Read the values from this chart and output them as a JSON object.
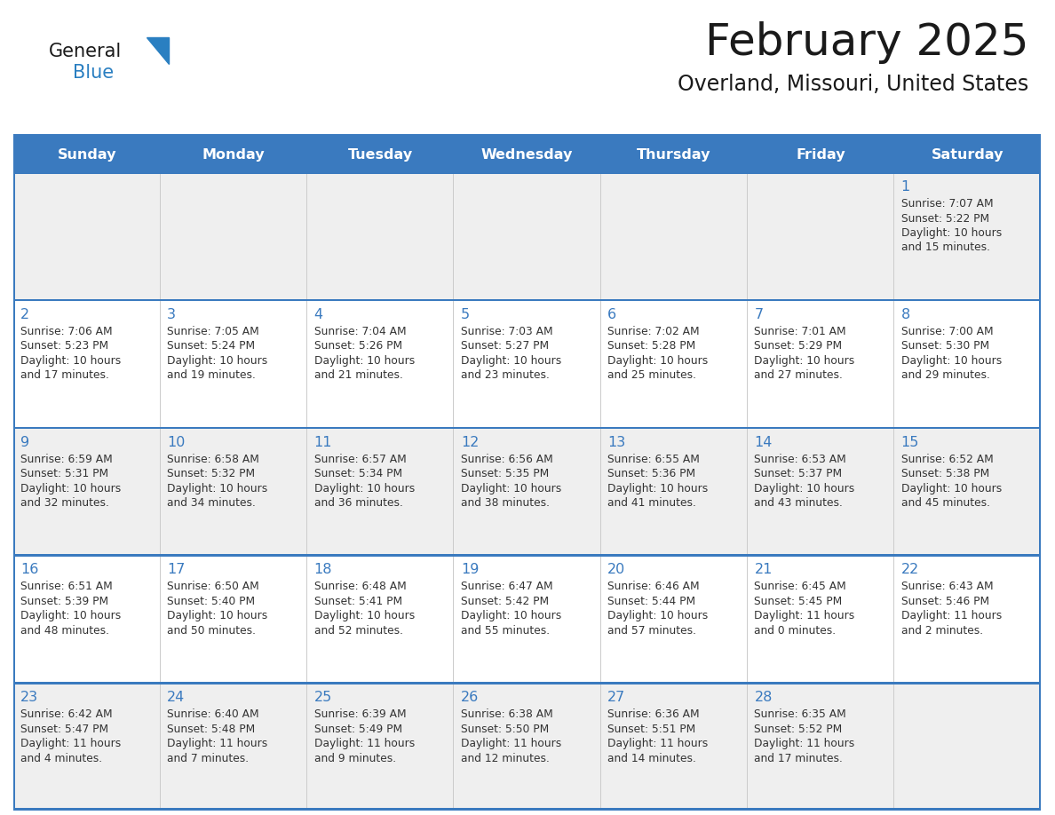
{
  "title": "February 2025",
  "subtitle": "Overland, Missouri, United States",
  "days_of_week": [
    "Sunday",
    "Monday",
    "Tuesday",
    "Wednesday",
    "Thursday",
    "Friday",
    "Saturday"
  ],
  "header_bg": "#3a7abf",
  "header_text": "#ffffff",
  "row_bg_odd": "#efefef",
  "row_bg_even": "#ffffff",
  "day_number_color": "#3a7abf",
  "cell_text_color": "#333333",
  "separator_color": "#3a7abf",
  "title_color": "#1a1a1a",
  "subtitle_color": "#1a1a1a",
  "logo_general_color": "#1a1a1a",
  "logo_blue_color": "#2a7fc1",
  "weeks": [
    [
      null,
      null,
      null,
      null,
      null,
      null,
      1
    ],
    [
      2,
      3,
      4,
      5,
      6,
      7,
      8
    ],
    [
      9,
      10,
      11,
      12,
      13,
      14,
      15
    ],
    [
      16,
      17,
      18,
      19,
      20,
      21,
      22
    ],
    [
      23,
      24,
      25,
      26,
      27,
      28,
      null
    ]
  ],
  "cell_data": {
    "1": {
      "sunrise": "7:07 AM",
      "sunset": "5:22 PM",
      "daylight": "10 hours and 15 minutes."
    },
    "2": {
      "sunrise": "7:06 AM",
      "sunset": "5:23 PM",
      "daylight": "10 hours and 17 minutes."
    },
    "3": {
      "sunrise": "7:05 AM",
      "sunset": "5:24 PM",
      "daylight": "10 hours and 19 minutes."
    },
    "4": {
      "sunrise": "7:04 AM",
      "sunset": "5:26 PM",
      "daylight": "10 hours and 21 minutes."
    },
    "5": {
      "sunrise": "7:03 AM",
      "sunset": "5:27 PM",
      "daylight": "10 hours and 23 minutes."
    },
    "6": {
      "sunrise": "7:02 AM",
      "sunset": "5:28 PM",
      "daylight": "10 hours and 25 minutes."
    },
    "7": {
      "sunrise": "7:01 AM",
      "sunset": "5:29 PM",
      "daylight": "10 hours and 27 minutes."
    },
    "8": {
      "sunrise": "7:00 AM",
      "sunset": "5:30 PM",
      "daylight": "10 hours and 29 minutes."
    },
    "9": {
      "sunrise": "6:59 AM",
      "sunset": "5:31 PM",
      "daylight": "10 hours and 32 minutes."
    },
    "10": {
      "sunrise": "6:58 AM",
      "sunset": "5:32 PM",
      "daylight": "10 hours and 34 minutes."
    },
    "11": {
      "sunrise": "6:57 AM",
      "sunset": "5:34 PM",
      "daylight": "10 hours and 36 minutes."
    },
    "12": {
      "sunrise": "6:56 AM",
      "sunset": "5:35 PM",
      "daylight": "10 hours and 38 minutes."
    },
    "13": {
      "sunrise": "6:55 AM",
      "sunset": "5:36 PM",
      "daylight": "10 hours and 41 minutes."
    },
    "14": {
      "sunrise": "6:53 AM",
      "sunset": "5:37 PM",
      "daylight": "10 hours and 43 minutes."
    },
    "15": {
      "sunrise": "6:52 AM",
      "sunset": "5:38 PM",
      "daylight": "10 hours and 45 minutes."
    },
    "16": {
      "sunrise": "6:51 AM",
      "sunset": "5:39 PM",
      "daylight": "10 hours and 48 minutes."
    },
    "17": {
      "sunrise": "6:50 AM",
      "sunset": "5:40 PM",
      "daylight": "10 hours and 50 minutes."
    },
    "18": {
      "sunrise": "6:48 AM",
      "sunset": "5:41 PM",
      "daylight": "10 hours and 52 minutes."
    },
    "19": {
      "sunrise": "6:47 AM",
      "sunset": "5:42 PM",
      "daylight": "10 hours and 55 minutes."
    },
    "20": {
      "sunrise": "6:46 AM",
      "sunset": "5:44 PM",
      "daylight": "10 hours and 57 minutes."
    },
    "21": {
      "sunrise": "6:45 AM",
      "sunset": "5:45 PM",
      "daylight": "11 hours and 0 minutes."
    },
    "22": {
      "sunrise": "6:43 AM",
      "sunset": "5:46 PM",
      "daylight": "11 hours and 2 minutes."
    },
    "23": {
      "sunrise": "6:42 AM",
      "sunset": "5:47 PM",
      "daylight": "11 hours and 4 minutes."
    },
    "24": {
      "sunrise": "6:40 AM",
      "sunset": "5:48 PM",
      "daylight": "11 hours and 7 minutes."
    },
    "25": {
      "sunrise": "6:39 AM",
      "sunset": "5:49 PM",
      "daylight": "11 hours and 9 minutes."
    },
    "26": {
      "sunrise": "6:38 AM",
      "sunset": "5:50 PM",
      "daylight": "11 hours and 12 minutes."
    },
    "27": {
      "sunrise": "6:36 AM",
      "sunset": "5:51 PM",
      "daylight": "11 hours and 14 minutes."
    },
    "28": {
      "sunrise": "6:35 AM",
      "sunset": "5:52 PM",
      "daylight": "11 hours and 17 minutes."
    }
  }
}
